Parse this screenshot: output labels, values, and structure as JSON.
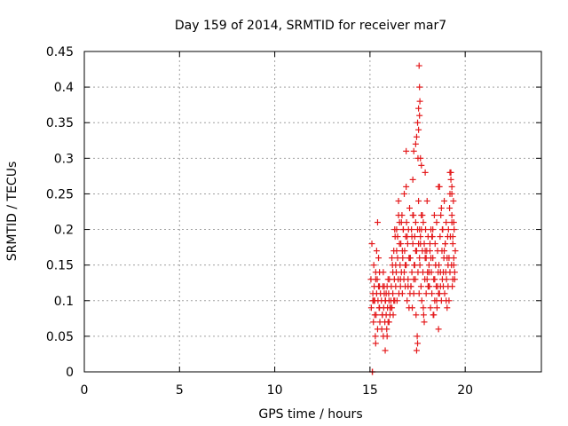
{
  "chart_data": {
    "type": "scatter",
    "title": "Day 159 of 2014, SRMTID for receiver mar7",
    "xlabel": "GPS time / hours",
    "ylabel": "SRMTID / TECUs",
    "xlim": [
      0,
      24
    ],
    "ylim": [
      0,
      0.45
    ],
    "xticks": [
      0,
      5,
      10,
      15,
      20
    ],
    "xtick_labels": [
      "0",
      "5",
      "10",
      "15",
      "20"
    ],
    "yticks": [
      0,
      0.05,
      0.1,
      0.15,
      0.2,
      0.25,
      0.3,
      0.35,
      0.4,
      0.45
    ],
    "ytick_labels": [
      "0",
      "0.05",
      "0.1",
      "0.15",
      "0.2",
      "0.25",
      "0.3",
      "0.35",
      "0.4",
      "0.45"
    ],
    "grid": true,
    "marker": "+",
    "marker_color": "#e41a1c",
    "series": [
      {
        "name": "SRMTID",
        "x": [
          15.05,
          15.07,
          15.1,
          15.15,
          15.18,
          15.2,
          15.22,
          15.25,
          15.28,
          15.3,
          15.32,
          15.35,
          15.38,
          15.4,
          15.42,
          15.45,
          15.48,
          15.5,
          15.52,
          15.55,
          15.2,
          15.3,
          15.4,
          15.5,
          15.35,
          15.25,
          15.45,
          15.15,
          15.3,
          15.5,
          15.6,
          15.62,
          15.65,
          15.68,
          15.7,
          15.72,
          15.75,
          15.78,
          15.8,
          15.82,
          15.85,
          15.88,
          15.9,
          15.92,
          15.95,
          15.98,
          16.0,
          16.02,
          16.05,
          16.08,
          15.7,
          15.8,
          15.9,
          16.0,
          15.75,
          15.85,
          16.05,
          15.65,
          15.95,
          16.1,
          16.12,
          16.15,
          16.18,
          16.2,
          16.22,
          16.25,
          16.28,
          16.3,
          16.32,
          16.35,
          16.38,
          16.4,
          16.42,
          16.45,
          16.48,
          16.5,
          16.52,
          16.55,
          16.58,
          16.6,
          16.2,
          16.3,
          16.4,
          16.5,
          16.25,
          16.35,
          16.45,
          16.55,
          16.15,
          16.6,
          16.62,
          16.65,
          16.68,
          16.7,
          16.72,
          16.75,
          16.78,
          16.8,
          16.82,
          16.85,
          16.88,
          16.9,
          16.92,
          16.95,
          16.98,
          17.0,
          17.02,
          17.05,
          17.08,
          17.1,
          16.7,
          16.8,
          16.9,
          17.0,
          16.75,
          16.85,
          16.95,
          17.05,
          16.65,
          17.1,
          17.12,
          17.15,
          17.18,
          17.2,
          17.22,
          17.25,
          17.28,
          17.3,
          17.32,
          17.35,
          17.38,
          17.4,
          17.42,
          17.45,
          17.48,
          17.5,
          17.52,
          17.55,
          17.58,
          17.6,
          17.2,
          17.3,
          17.4,
          17.5,
          17.25,
          17.35,
          17.45,
          17.55,
          17.15,
          17.6,
          17.62,
          17.65,
          17.68,
          17.7,
          17.72,
          17.75,
          17.78,
          17.8,
          17.82,
          17.85,
          17.88,
          17.9,
          17.92,
          17.95,
          17.98,
          18.0,
          18.02,
          18.05,
          18.08,
          18.1,
          17.7,
          17.8,
          17.9,
          18.0,
          17.75,
          17.85,
          17.95,
          18.05,
          17.65,
          18.1,
          18.12,
          18.15,
          18.18,
          18.2,
          18.22,
          18.25,
          18.28,
          18.3,
          18.32,
          18.35,
          18.38,
          18.4,
          18.42,
          18.45,
          18.48,
          18.5,
          18.52,
          18.55,
          18.58,
          18.6,
          18.2,
          18.3,
          18.4,
          18.5,
          18.25,
          18.35,
          18.45,
          18.55,
          18.15,
          18.6,
          18.62,
          18.65,
          18.68,
          18.7,
          18.72,
          18.75,
          18.78,
          18.8,
          18.82,
          18.85,
          18.88,
          18.9,
          18.92,
          18.95,
          18.98,
          19.0,
          19.02,
          19.05,
          19.08,
          19.1,
          18.7,
          18.8,
          18.9,
          19.0,
          18.75,
          18.85,
          18.95,
          19.05,
          18.65,
          19.1,
          19.12,
          19.15,
          19.18,
          19.2,
          19.22,
          19.25,
          19.28,
          19.3,
          19.32,
          19.35,
          19.38,
          19.4,
          19.42,
          19.45,
          19.48,
          19.2,
          19.3,
          19.4,
          19.25,
          19.35,
          19.45,
          19.15,
          19.3,
          19.4,
          19.2,
          17.58,
          17.6,
          17.62,
          17.55,
          17.5,
          17.45,
          17.4,
          17.65,
          17.7,
          17.3,
          17.25,
          17.6,
          17.55,
          17.52,
          16.9,
          17.9,
          18.6,
          19.3,
          19.35,
          15.12,
          15.13
        ],
        "y": [
          0.13,
          0.09,
          0.18,
          0.11,
          0.07,
          0.15,
          0.12,
          0.1,
          0.05,
          0.14,
          0.08,
          0.11,
          0.13,
          0.06,
          0.1,
          0.16,
          0.09,
          0.12,
          0.07,
          0.11,
          0.1,
          0.04,
          0.21,
          0.14,
          0.17,
          0.08,
          0.12,
          0.1,
          0.13,
          0.09,
          0.1,
          0.06,
          0.08,
          0.12,
          0.05,
          0.09,
          0.11,
          0.07,
          0.03,
          0.1,
          0.08,
          0.06,
          0.12,
          0.09,
          0.07,
          0.11,
          0.1,
          0.13,
          0.08,
          0.09,
          0.14,
          0.1,
          0.05,
          0.07,
          0.12,
          0.11,
          0.09,
          0.08,
          0.13,
          0.1,
          0.12,
          0.09,
          0.15,
          0.11,
          0.08,
          0.17,
          0.13,
          0.1,
          0.19,
          0.12,
          0.14,
          0.2,
          0.1,
          0.16,
          0.13,
          0.22,
          0.11,
          0.18,
          0.15,
          0.12,
          0.14,
          0.2,
          0.17,
          0.24,
          0.1,
          0.15,
          0.19,
          0.21,
          0.16,
          0.13,
          0.18,
          0.14,
          0.22,
          0.11,
          0.16,
          0.2,
          0.13,
          0.25,
          0.17,
          0.12,
          0.19,
          0.15,
          0.21,
          0.1,
          0.18,
          0.13,
          0.2,
          0.16,
          0.23,
          0.11,
          0.17,
          0.14,
          0.26,
          0.12,
          0.2,
          0.15,
          0.19,
          0.09,
          0.21,
          0.16,
          0.16,
          0.12,
          0.2,
          0.14,
          0.09,
          0.18,
          0.22,
          0.11,
          0.15,
          0.19,
          0.13,
          0.21,
          0.08,
          0.17,
          0.05,
          0.2,
          0.14,
          0.24,
          0.11,
          0.16,
          0.19,
          0.13,
          0.17,
          0.04,
          0.22,
          0.15,
          0.03,
          0.18,
          0.12,
          0.2,
          0.15,
          0.19,
          0.12,
          0.22,
          0.1,
          0.17,
          0.14,
          0.21,
          0.08,
          0.18,
          0.13,
          0.16,
          0.2,
          0.11,
          0.17,
          0.24,
          0.14,
          0.19,
          0.12,
          0.15,
          0.2,
          0.09,
          0.17,
          0.13,
          0.22,
          0.07,
          0.16,
          0.12,
          0.18,
          0.14,
          0.12,
          0.17,
          0.09,
          0.2,
          0.14,
          0.11,
          0.19,
          0.16,
          0.08,
          0.13,
          0.22,
          0.1,
          0.18,
          0.15,
          0.12,
          0.21,
          0.09,
          0.17,
          0.14,
          0.11,
          0.16,
          0.2,
          0.13,
          0.1,
          0.19,
          0.08,
          0.15,
          0.12,
          0.18,
          0.06,
          0.15,
          0.11,
          0.19,
          0.14,
          0.22,
          0.1,
          0.17,
          0.13,
          0.2,
          0.12,
          0.16,
          0.24,
          0.11,
          0.18,
          0.14,
          0.21,
          0.13,
          0.09,
          0.19,
          0.15,
          0.12,
          0.2,
          0.17,
          0.1,
          0.23,
          0.14,
          0.18,
          0.16,
          0.26,
          0.12,
          0.2,
          0.16,
          0.23,
          0.14,
          0.19,
          0.27,
          0.15,
          0.21,
          0.12,
          0.18,
          0.24,
          0.16,
          0.2,
          0.13,
          0.17,
          0.25,
          0.22,
          0.15,
          0.28,
          0.19,
          0.14,
          0.1,
          0.26,
          0.21,
          0.28,
          0.43,
          0.4,
          0.38,
          0.37,
          0.35,
          0.33,
          0.32,
          0.3,
          0.29,
          0.31,
          0.27,
          0.36,
          0.34,
          0.3,
          0.31,
          0.28,
          0.26,
          0.25,
          0.13,
          0.0,
          0.0
        ]
      }
    ]
  }
}
